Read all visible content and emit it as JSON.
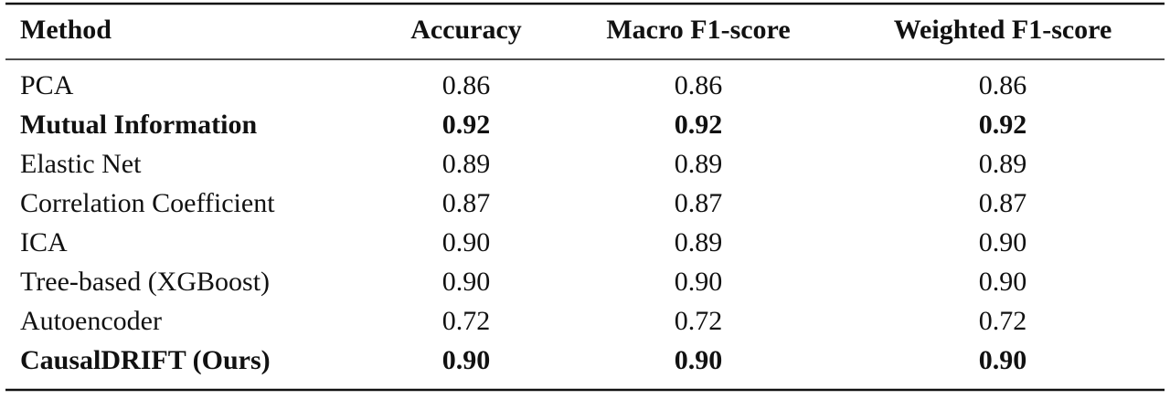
{
  "table": {
    "columns": [
      "Method",
      "Accuracy",
      "Macro F1-score",
      "Weighted F1-score"
    ],
    "rows": [
      [
        "PCA",
        "0.86",
        "0.86",
        "0.86"
      ],
      [
        "Mutual Information",
        "0.92",
        "0.92",
        "0.92"
      ],
      [
        "Elastic Net",
        "0.89",
        "0.89",
        "0.89"
      ],
      [
        "Correlation Coefficient",
        "0.87",
        "0.87",
        "0.87"
      ],
      [
        "ICA",
        "0.90",
        "0.89",
        "0.90"
      ],
      [
        "Tree-based (XGBoost)",
        "0.90",
        "0.90",
        "0.90"
      ],
      [
        "Autoencoder",
        "0.72",
        "0.72",
        "0.72"
      ],
      [
        "CausalDRIFT (Ours)",
        "0.90",
        "0.90",
        "0.90"
      ]
    ],
    "bold_rows": [
      1,
      7
    ]
  }
}
